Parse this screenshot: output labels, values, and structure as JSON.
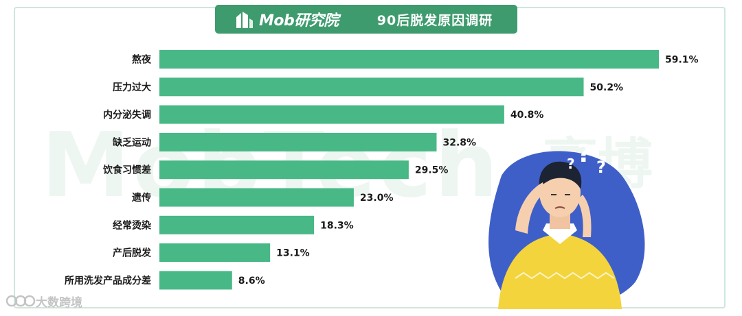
{
  "header": {
    "logo_text": "Mob研究院",
    "title": "90后脱发原因调研"
  },
  "watermark": {
    "text": "MobTech",
    "text2": "袤博"
  },
  "footer": {
    "brand": "大数跨境"
  },
  "colors": {
    "bar": "#47b886",
    "header_bg": "#3e9b6e",
    "label": "#1a1a1a"
  },
  "chart_data": {
    "type": "bar",
    "orientation": "horizontal",
    "title": "90后脱发原因调研",
    "categories": [
      "熬夜",
      "压力过大",
      "内分泌失调",
      "缺乏运动",
      "饮食习惯差",
      "遗传",
      "经常烫染",
      "产后脱发",
      "所用洗发产品成分差"
    ],
    "values": [
      59.1,
      50.2,
      40.8,
      32.8,
      29.5,
      23.0,
      18.3,
      13.1,
      8.6
    ],
    "value_labels": [
      "59.1%",
      "50.2%",
      "40.8%",
      "32.8%",
      "29.5%",
      "23.0%",
      "18.3%",
      "13.1%",
      "8.6%"
    ],
    "unit": "%",
    "xlim": [
      0,
      59.1
    ]
  }
}
